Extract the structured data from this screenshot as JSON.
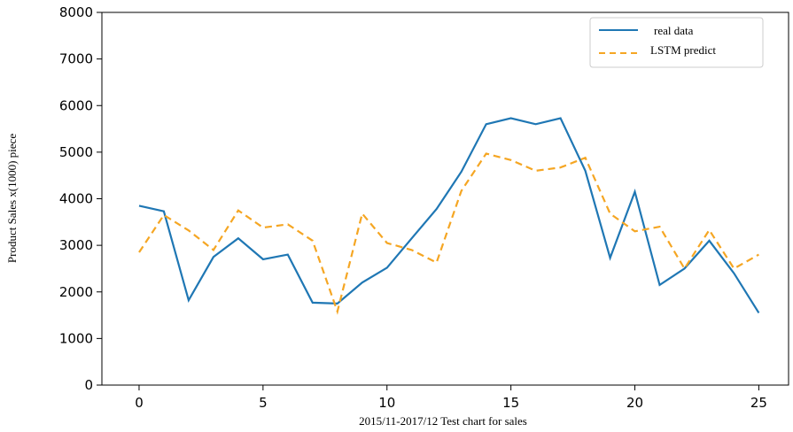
{
  "chart_data": {
    "type": "line",
    "xlabel": "2015/11-2017/12 Test chart for sales",
    "ylabel": "Product Sales x(1000) piece",
    "xlim": [
      -1.5,
      26.2
    ],
    "ylim": [
      0,
      8000
    ],
    "x_ticks": [
      0,
      5,
      10,
      15,
      20,
      25
    ],
    "y_ticks": [
      0,
      1000,
      2000,
      3000,
      4000,
      5000,
      6000,
      7000,
      8000
    ],
    "grid": false,
    "legend_position": "top-right",
    "series": [
      {
        "name": "real data",
        "color": "#1f77b4",
        "style": "solid",
        "x": [
          0,
          1,
          2,
          3,
          4,
          5,
          6,
          7,
          8,
          9,
          10,
          11,
          12,
          13,
          14,
          15,
          16,
          17,
          18,
          19,
          20,
          21,
          22,
          23,
          24,
          25
        ],
        "values": [
          3850,
          3730,
          1820,
          2750,
          3150,
          2700,
          2800,
          1770,
          1750,
          2200,
          2520,
          3150,
          3780,
          4580,
          5600,
          5730,
          5600,
          5730,
          4600,
          2730,
          4150,
          2150,
          2500,
          3100,
          2400,
          1550
        ]
      },
      {
        "name": "LSTM predict",
        "color": "#f5a623",
        "style": "dashed",
        "x": [
          0,
          1,
          2,
          3,
          4,
          5,
          6,
          7,
          8,
          9,
          10,
          11,
          12,
          13,
          14,
          15,
          16,
          17,
          18,
          19,
          20,
          21,
          22,
          23,
          24,
          25
        ],
        "values": [
          2850,
          3650,
          3320,
          2900,
          3750,
          3380,
          3450,
          3100,
          1580,
          3680,
          3050,
          2900,
          2630,
          4170,
          4970,
          4830,
          4600,
          4670,
          4880,
          3680,
          3300,
          3400,
          2500,
          3330,
          2500,
          2800
        ]
      }
    ]
  }
}
